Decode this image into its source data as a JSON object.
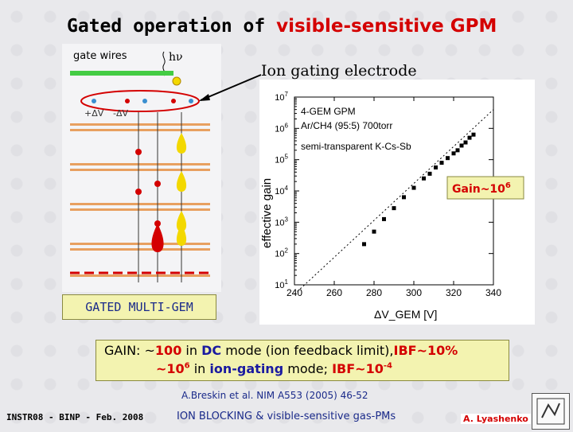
{
  "title": {
    "part1": "Gated operation of",
    "part2": "visible-sensitive GPM"
  },
  "diagram": {
    "gate_wires_label": "gate wires",
    "hv_label": "hν",
    "plus_dv_label": "+ΔV",
    "minus_dv_label": "-ΔV",
    "ion_gating_label": "Ion gating electrode",
    "gated_label": "GATED MULTI-GEM",
    "colors": {
      "electron": "#d40000",
      "ion": "#3a8fd0",
      "wire": "#44cc44",
      "gem": "#e8a060",
      "drop": "#f3d800"
    }
  },
  "chart_data": {
    "type": "scatter",
    "xlabel": "ΔV_GEM [V]",
    "ylabel": "effective gain",
    "xlim": [
      240,
      340
    ],
    "ylim_log10": [
      1,
      7
    ],
    "x_ticks": [
      "240",
      "260",
      "280",
      "300",
      "320",
      "340"
    ],
    "y_ticks": [
      {
        "base": "10",
        "exp": "1"
      },
      {
        "base": "10",
        "exp": "2"
      },
      {
        "base": "10",
        "exp": "3"
      },
      {
        "base": "10",
        "exp": "4"
      },
      {
        "base": "10",
        "exp": "5"
      },
      {
        "base": "10",
        "exp": "6"
      },
      {
        "base": "10",
        "exp": "7"
      }
    ],
    "legend": {
      "line1": "4-GEM GPM",
      "line2": "Ar/CH4 (95:5) 700torr",
      "line3": "semi-transparent K-Cs-Sb"
    },
    "annotation": {
      "text": "Gain~10",
      "exp": "6"
    },
    "series": [
      {
        "x": [
          275,
          280,
          285,
          290,
          295,
          300,
          305,
          308,
          311,
          314,
          317,
          320,
          322,
          324,
          326,
          328,
          330
        ],
        "log10_gain": [
          2.3,
          2.7,
          3.1,
          3.45,
          3.8,
          4.1,
          4.4,
          4.55,
          4.75,
          4.9,
          5.05,
          5.2,
          5.3,
          5.45,
          5.55,
          5.7,
          5.8
        ]
      }
    ],
    "fit_line": {
      "x": [
        240,
        340
      ],
      "log10_gain": [
        0.7,
        6.6
      ]
    }
  },
  "gain_box": {
    "l1_a": "GAIN: ~",
    "l1_b": "100",
    "l1_c": " in ",
    "l1_d": "DC",
    "l1_e": " mode (ion feedback limit),",
    "l1_f": "IBF~10%",
    "l2_a": "~10",
    "l2_exp": "6",
    "l2_b": "  in ",
    "l2_c": "ion-gating",
    "l2_d": " mode; ",
    "l2_e": "IBF~10",
    "l2_exp2": "-4"
  },
  "reference": "A.Breskin et al. NIM A553 (2005) 46-52",
  "footer": {
    "left": "INSTR08 - BINP - Feb. 2008",
    "center": "ION BLOCKING & visible-sensitive gas-PMs",
    "author": "A. Lyashenko"
  }
}
